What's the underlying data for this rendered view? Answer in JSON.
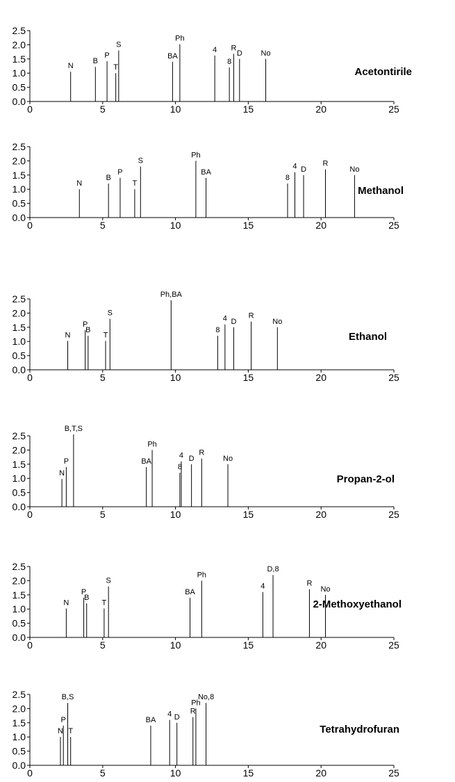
{
  "chart_data": [
    {
      "type": "bar",
      "title": "Acetontirile",
      "xlim": [
        0,
        25
      ],
      "ylim": [
        0,
        2.5
      ],
      "xticks": [
        "0",
        "5",
        "10",
        "15",
        "20",
        "25"
      ],
      "yticks": [
        "0.0",
        "0.5",
        "1.0",
        "1.5",
        "2.0",
        "2.5"
      ],
      "peaks": [
        {
          "label": "N",
          "x": 2.8,
          "y": 1.05
        },
        {
          "label": "B",
          "x": 4.5,
          "y": 1.22
        },
        {
          "label": "P",
          "x": 5.3,
          "y": 1.42
        },
        {
          "label": "T",
          "x": 5.9,
          "y": 1.0
        },
        {
          "label": "S",
          "x": 6.1,
          "y": 1.8
        },
        {
          "label": "BA",
          "x": 9.8,
          "y": 1.4
        },
        {
          "label": "Ph",
          "x": 10.3,
          "y": 2.02
        },
        {
          "label": "4",
          "x": 12.7,
          "y": 1.62
        },
        {
          "label": "8",
          "x": 13.7,
          "y": 1.2
        },
        {
          "label": "R",
          "x": 14.0,
          "y": 1.68
        },
        {
          "label": "D",
          "x": 14.4,
          "y": 1.5
        },
        {
          "label": "No",
          "x": 16.2,
          "y": 1.5
        }
      ]
    },
    {
      "type": "bar",
      "title": "Methanol",
      "xlim": [
        0,
        25
      ],
      "ylim": [
        0,
        2.5
      ],
      "xticks": [
        "0",
        "5",
        "10",
        "15",
        "20",
        "25"
      ],
      "yticks": [
        "0.0",
        "0.5",
        "1.0",
        "1.5",
        "2.0",
        "2.5"
      ],
      "peaks": [
        {
          "label": "N",
          "x": 3.4,
          "y": 1.0
        },
        {
          "label": "B",
          "x": 5.4,
          "y": 1.2
        },
        {
          "label": "P",
          "x": 6.2,
          "y": 1.4
        },
        {
          "label": "T",
          "x": 7.2,
          "y": 1.0
        },
        {
          "label": "S",
          "x": 7.6,
          "y": 1.8
        },
        {
          "label": "Ph",
          "x": 11.4,
          "y": 2.0
        },
        {
          "label": "BA",
          "x": 12.1,
          "y": 1.4
        },
        {
          "label": "8",
          "x": 17.7,
          "y": 1.2
        },
        {
          "label": "4",
          "x": 18.2,
          "y": 1.6
        },
        {
          "label": "D",
          "x": 18.8,
          "y": 1.5
        },
        {
          "label": "R",
          "x": 20.3,
          "y": 1.7
        },
        {
          "label": "No",
          "x": 22.3,
          "y": 1.5
        }
      ]
    },
    {
      "type": "bar",
      "title": "Ethanol",
      "xlim": [
        0,
        25
      ],
      "ylim": [
        0,
        2.5
      ],
      "xticks": [
        "0",
        "5",
        "10",
        "15",
        "20",
        "25"
      ],
      "yticks": [
        "0.0",
        "0.5",
        "1.0",
        "1.5",
        "2.0",
        "2.5"
      ],
      "peaks": [
        {
          "label": "N",
          "x": 2.6,
          "y": 1.02
        },
        {
          "label": "P",
          "x": 3.8,
          "y": 1.4
        },
        {
          "label": "B",
          "x": 4.0,
          "y": 1.2
        },
        {
          "label": "T",
          "x": 5.2,
          "y": 1.02
        },
        {
          "label": "S",
          "x": 5.5,
          "y": 1.8
        },
        {
          "label": "Ph,BA",
          "x": 9.7,
          "y": 2.45
        },
        {
          "label": "8",
          "x": 12.9,
          "y": 1.2
        },
        {
          "label": "4",
          "x": 13.4,
          "y": 1.6
        },
        {
          "label": "D",
          "x": 14.0,
          "y": 1.5
        },
        {
          "label": "R",
          "x": 15.2,
          "y": 1.7
        },
        {
          "label": "No",
          "x": 17.0,
          "y": 1.5
        }
      ]
    },
    {
      "type": "bar",
      "title": "Propan-2-ol",
      "xlim": [
        0,
        25
      ],
      "ylim": [
        0,
        2.5
      ],
      "xticks": [
        "0",
        "5",
        "10",
        "15",
        "20",
        "25"
      ],
      "yticks": [
        "0.0",
        "0.5",
        "1.0",
        "1.5",
        "2.0",
        "2.5"
      ],
      "peaks": [
        {
          "label": "N",
          "x": 2.2,
          "y": 0.98
        },
        {
          "label": "P",
          "x": 2.5,
          "y": 1.4
        },
        {
          "label": "B,T,S",
          "x": 3.0,
          "y": 2.55
        },
        {
          "label": "BA",
          "x": 8.0,
          "y": 1.4
        },
        {
          "label": "Ph",
          "x": 8.4,
          "y": 2.0
        },
        {
          "label": "8",
          "x": 10.3,
          "y": 1.2
        },
        {
          "label": "4",
          "x": 10.4,
          "y": 1.6
        },
        {
          "label": "D",
          "x": 11.1,
          "y": 1.5
        },
        {
          "label": "R",
          "x": 11.8,
          "y": 1.7
        },
        {
          "label": "No",
          "x": 13.6,
          "y": 1.5
        }
      ]
    },
    {
      "type": "bar",
      "title": "2-Methoxyethanol",
      "xlim": [
        0,
        25
      ],
      "ylim": [
        0,
        2.5
      ],
      "xticks": [
        "0",
        "5",
        "10",
        "15",
        "20",
        "25"
      ],
      "yticks": [
        "0.0",
        "0.5",
        "1.0",
        "1.5",
        "2.0",
        "2.5"
      ],
      "peaks": [
        {
          "label": "N",
          "x": 2.5,
          "y": 1.02
        },
        {
          "label": "P",
          "x": 3.7,
          "y": 1.4
        },
        {
          "label": "B",
          "x": 3.9,
          "y": 1.2
        },
        {
          "label": "T",
          "x": 5.1,
          "y": 1.02
        },
        {
          "label": "S",
          "x": 5.4,
          "y": 1.8
        },
        {
          "label": "BA",
          "x": 11.0,
          "y": 1.4
        },
        {
          "label": "Ph",
          "x": 11.8,
          "y": 2.0
        },
        {
          "label": "4",
          "x": 16.0,
          "y": 1.6
        },
        {
          "label": "D,8",
          "x": 16.7,
          "y": 2.2
        },
        {
          "label": "R",
          "x": 19.2,
          "y": 1.7
        },
        {
          "label": "No",
          "x": 20.3,
          "y": 1.5
        }
      ]
    },
    {
      "type": "bar",
      "title": "Tetrahydrofuran",
      "xlim": [
        0,
        25
      ],
      "ylim": [
        0,
        2.5
      ],
      "xticks": [
        "0",
        "5",
        "10",
        "15",
        "20",
        "25"
      ],
      "yticks": [
        "0.0",
        "0.5",
        "1.0",
        "1.5",
        "2.0",
        "2.5"
      ],
      "peaks": [
        {
          "label": "N",
          "x": 2.1,
          "y": 1.0
        },
        {
          "label": "P",
          "x": 2.3,
          "y": 1.4
        },
        {
          "label": "B,S",
          "x": 2.6,
          "y": 2.2
        },
        {
          "label": "T",
          "x": 2.8,
          "y": 1.0
        },
        {
          "label": "BA",
          "x": 8.3,
          "y": 1.4
        },
        {
          "label": "4",
          "x": 9.6,
          "y": 1.6
        },
        {
          "label": "D",
          "x": 10.1,
          "y": 1.5
        },
        {
          "label": "R",
          "x": 11.2,
          "y": 1.7
        },
        {
          "label": "Ph",
          "x": 11.4,
          "y": 2.0
        },
        {
          "label": "No,8",
          "x": 12.1,
          "y": 2.2
        }
      ]
    }
  ]
}
